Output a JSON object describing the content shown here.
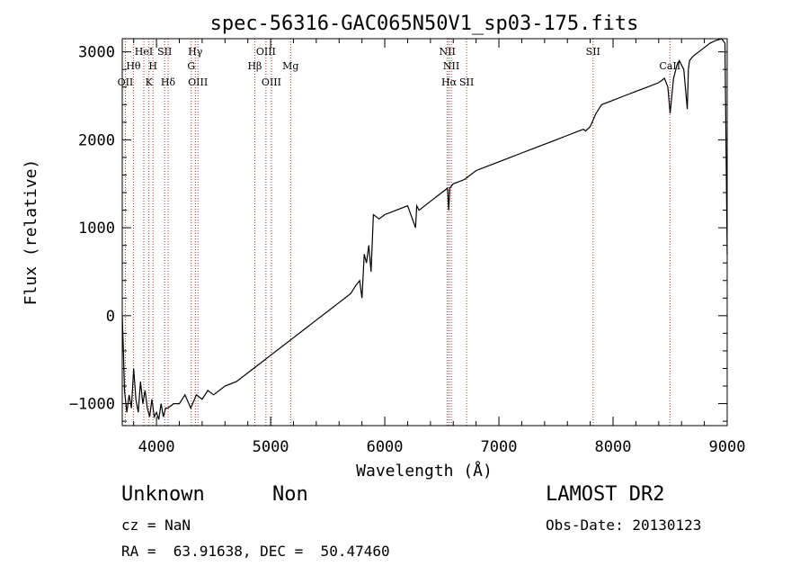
{
  "chart_data": {
    "type": "line",
    "title": "spec-56316-GAC065N50V1_sp03-175.fits",
    "xlabel": "Wavelength (Å)",
    "ylabel": "Flux (relative)",
    "xlim": [
      3700,
      9000
    ],
    "ylim": [
      -1250,
      3150
    ],
    "x_ticks": [
      4000,
      5000,
      6000,
      7000,
      8000,
      9000
    ],
    "y_ticks": [
      -1000,
      0,
      1000,
      2000,
      3000
    ],
    "grid": false,
    "series": [
      {
        "color": "#000000",
        "x": [
          3700,
          3710,
          3720,
          3740,
          3760,
          3780,
          3800,
          3820,
          3840,
          3860,
          3880,
          3900,
          3920,
          3940,
          3960,
          3980,
          4000,
          4020,
          4040,
          4060,
          4080,
          4100,
          4150,
          4200,
          4250,
          4300,
          4350,
          4400,
          4450,
          4500,
          4600,
          4700,
          4800,
          4900,
          5000,
          5100,
          5200,
          5300,
          5400,
          5500,
          5600,
          5700,
          5750,
          5780,
          5800,
          5820,
          5840,
          5860,
          5880,
          5900,
          5950,
          6000,
          6100,
          6200,
          6270,
          6280,
          6300,
          6400,
          6500,
          6550,
          6560,
          6570,
          6600,
          6700,
          6800,
          6900,
          7000,
          7100,
          7200,
          7300,
          7400,
          7500,
          7600,
          7700,
          7740,
          7760,
          7800,
          7850,
          7900,
          8000,
          8100,
          8200,
          8300,
          8400,
          8450,
          8480,
          8500,
          8530,
          8540,
          8560,
          8580,
          8620,
          8650,
          8660,
          8670,
          8700,
          8750,
          8800,
          8850,
          8900,
          8950,
          8980,
          9000
        ],
        "y": [
          0,
          -400,
          -850,
          -1100,
          -900,
          -1050,
          -600,
          -950,
          -1100,
          -750,
          -1000,
          -850,
          -1050,
          -1150,
          -950,
          -1150,
          -1100,
          -1180,
          -1000,
          -1150,
          -1050,
          -1050,
          -1000,
          -1000,
          -900,
          -1050,
          -900,
          -950,
          -850,
          -900,
          -800,
          -750,
          -650,
          -550,
          -450,
          -350,
          -250,
          -150,
          -50,
          50,
          150,
          250,
          350,
          400,
          200,
          700,
          600,
          800,
          500,
          1150,
          1100,
          1150,
          1200,
          1250,
          1000,
          1250,
          1200,
          1300,
          1400,
          1450,
          1200,
          1450,
          1500,
          1550,
          1650,
          1700,
          1750,
          1800,
          1850,
          1900,
          1950,
          2000,
          2050,
          2100,
          2120,
          2100,
          2150,
          2300,
          2400,
          2450,
          2500,
          2550,
          2600,
          2650,
          2700,
          2600,
          2300,
          2700,
          2750,
          2850,
          2900,
          2800,
          2350,
          2800,
          2900,
          2950,
          3000,
          3050,
          3100,
          3130,
          3150,
          3100,
          700
        ]
      }
    ],
    "line_markers": [
      {
        "label": "OII",
        "wavelength": 3727,
        "row": 3
      },
      {
        "label": "Hθ",
        "wavelength": 3798,
        "row": 2
      },
      {
        "label": "HeI",
        "wavelength": 3889,
        "row": 1
      },
      {
        "label": "K",
        "wavelength": 3934,
        "row": 3
      },
      {
        "label": "H",
        "wavelength": 3969,
        "row": 2
      },
      {
        "label": "SII",
        "wavelength": 4072,
        "row": 1
      },
      {
        "label": "Hδ",
        "wavelength": 4102,
        "row": 3
      },
      {
        "label": "Hγ",
        "wavelength": 4340,
        "row": 1
      },
      {
        "label": "G",
        "wavelength": 4305,
        "row": 2
      },
      {
        "label": "OIII",
        "wavelength": 4363,
        "row": 3
      },
      {
        "label": "Hβ",
        "wavelength": 4861,
        "row": 2
      },
      {
        "label": "OIII",
        "wavelength": 4959,
        "row": 1
      },
      {
        "label": "OIII",
        "wavelength": 5007,
        "row": 3
      },
      {
        "label": "Mg",
        "wavelength": 5175,
        "row": 2
      },
      {
        "label": "NII",
        "wavelength": 6548,
        "row": 1
      },
      {
        "label": "NII",
        "wavelength": 6583,
        "row": 2
      },
      {
        "label": "Hα",
        "wavelength": 6563,
        "row": 3
      },
      {
        "label": "SII",
        "wavelength": 6717,
        "row": 3
      },
      {
        "label": "SII",
        "wavelength": 7825,
        "row": 1
      },
      {
        "label": "CaII",
        "wavelength": 8498,
        "row": 2
      }
    ]
  },
  "footer": {
    "class_label": "Unknown",
    "subclass_label": "Non",
    "survey_label": "LAMOST DR2",
    "cz_text": "cz = NaN",
    "obs_date_text": "Obs-Date: 20130123",
    "coords_text": "RA =  63.91638, DEC =  50.47460"
  },
  "colors": {
    "spectrum": "#000000",
    "marker_line": "#b03030",
    "axis": "#000000",
    "background": "#ffffff"
  }
}
